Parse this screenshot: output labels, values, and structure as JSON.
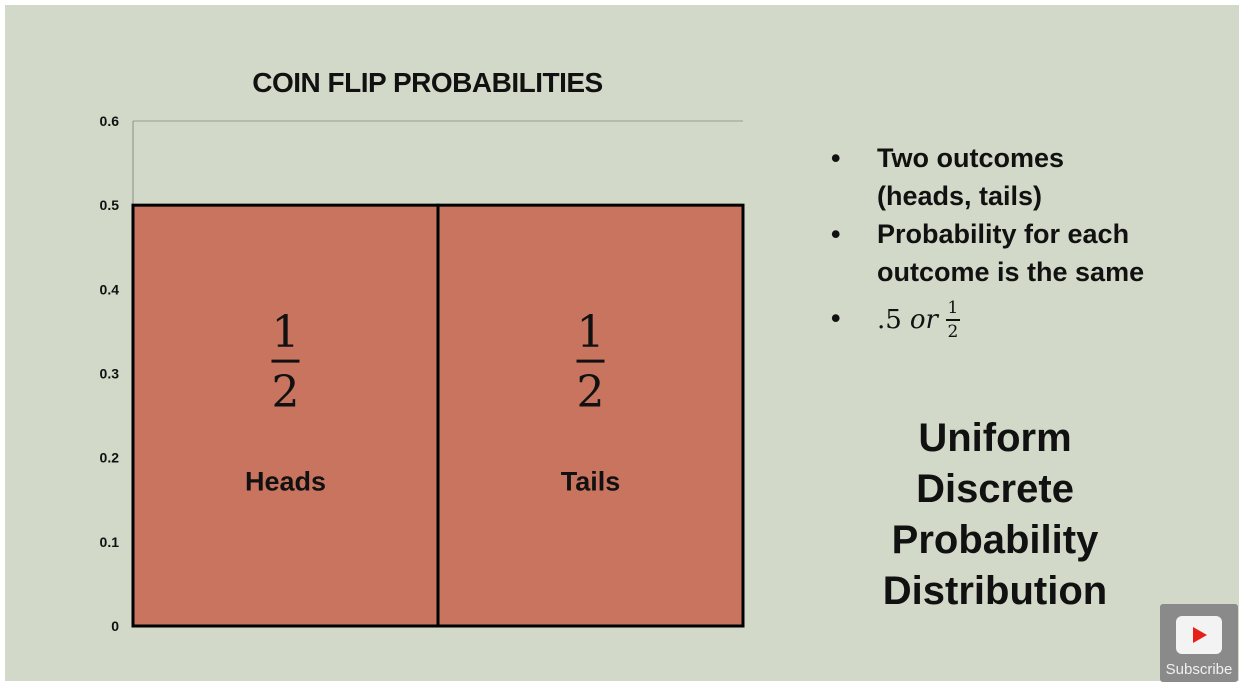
{
  "chart_data": {
    "type": "bar",
    "title": "COIN FLIP PROBABILITIES",
    "categories": [
      "Heads",
      "Tails"
    ],
    "values": [
      0.5,
      0.5
    ],
    "bar_labels": [
      "1/2",
      "1/2"
    ],
    "yticks": [
      "0",
      "0.1",
      "0.2",
      "0.3",
      "0.4",
      "0.5",
      "0.6"
    ],
    "ylim": [
      0,
      0.6
    ],
    "bar_color": "#c8745f",
    "xlabel": "",
    "ylabel": ""
  },
  "fraction": {
    "numerator": "1",
    "denominator": "2"
  },
  "bullets": {
    "item1": [
      "Two outcomes",
      "(heads, tails)"
    ],
    "item2": [
      "Probability for each",
      "outcome is the same"
    ],
    "item3": {
      "prefix": ".5",
      "word": "or",
      "numerator": "1",
      "denominator": "2"
    }
  },
  "bullet_symbol": "•",
  "distribution_label": [
    "Uniform",
    "Discrete",
    "Probability",
    "Distribution"
  ],
  "subscribe_label": "Subscribe",
  "colors": {
    "background": "#d3d9c8",
    "bar": "#c8745f",
    "text": "#111111"
  }
}
